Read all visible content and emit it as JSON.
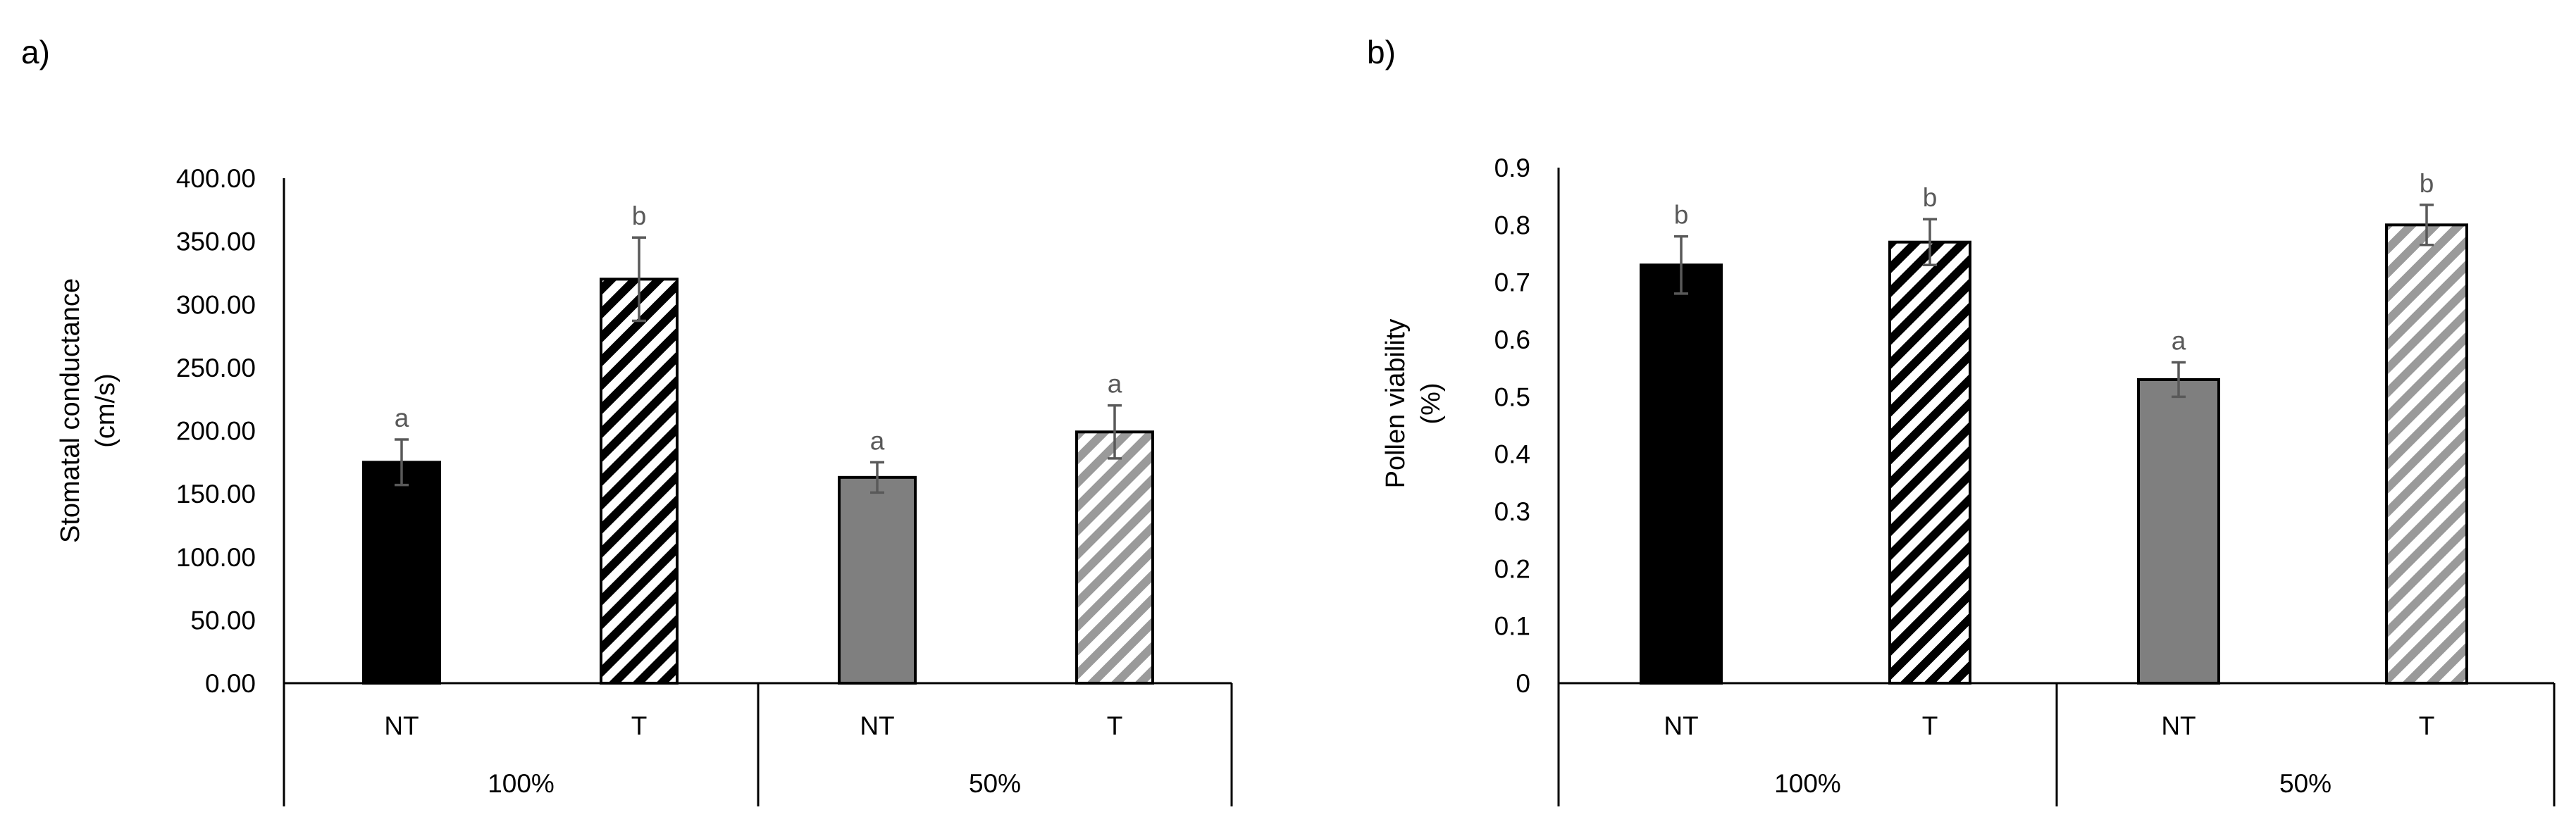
{
  "chart_data": [
    {
      "panel_label": "a)",
      "type": "bar",
      "groups": [
        "100%",
        "50%"
      ],
      "categories": [
        "NT",
        "T",
        "NT",
        "T"
      ],
      "group_of_category": [
        0,
        0,
        1,
        1
      ],
      "values": [
        175,
        320,
        163,
        199
      ],
      "errors": [
        18,
        33,
        12,
        21
      ],
      "significance_letters": [
        "a",
        "b",
        "a",
        "a"
      ],
      "bar_styles": [
        "solid-black",
        "hatch-black",
        "solid-gray",
        "hatch-gray"
      ],
      "ylabel_line1": "Stomatal conductance",
      "ylabel_line2": "(cm/s)",
      "ylim": [
        0,
        400
      ],
      "yticks": [
        0,
        50,
        100,
        150,
        200,
        250,
        300,
        350,
        400
      ],
      "ytick_labels": [
        "0.00",
        "50.00",
        "100.00",
        "150.00",
        "200.00",
        "250.00",
        "300.00",
        "350.00",
        "400.00"
      ],
      "grid": false
    },
    {
      "panel_label": "b)",
      "type": "bar",
      "groups": [
        "100%",
        "50%"
      ],
      "categories": [
        "NT",
        "T",
        "NT",
        "T"
      ],
      "group_of_category": [
        0,
        0,
        1,
        1
      ],
      "values": [
        0.73,
        0.77,
        0.53,
        0.8
      ],
      "errors": [
        0.05,
        0.04,
        0.03,
        0.035
      ],
      "significance_letters": [
        "b",
        "b",
        "a",
        "b"
      ],
      "bar_styles": [
        "solid-black",
        "hatch-black",
        "solid-gray",
        "hatch-gray"
      ],
      "ylabel_line1": "Pollen viability",
      "ylabel_line2": "(%)",
      "ylim": [
        0,
        0.9
      ],
      "yticks": [
        0,
        0.1,
        0.2,
        0.3,
        0.4,
        0.5,
        0.6,
        0.7,
        0.8,
        0.9
      ],
      "ytick_labels": [
        "0",
        "0.1",
        "0.2",
        "0.3",
        "0.4",
        "0.5",
        "0.6",
        "0.7",
        "0.8",
        "0.9"
      ],
      "grid": false
    }
  ],
  "colors": {
    "axis": "#000000",
    "bar_black": "#000000",
    "bar_gray": "#7f7f7f",
    "hatch_gray": "#9a9a9a",
    "error_bar": "#595959",
    "sig_letter": "#595959",
    "text": "#000000"
  }
}
